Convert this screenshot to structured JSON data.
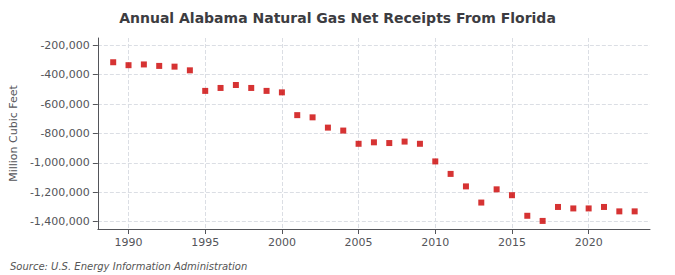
{
  "chart_data": {
    "type": "scatter",
    "title": "Annual Alabama Natural Gas Net Receipts From Florida",
    "ylabel": "Million Cubic Feet",
    "annotations": [
      "Source: U.S. Energy Information Administration"
    ],
    "color": "#cc0000",
    "marker": "square",
    "grid": true,
    "x": [
      1989,
      1990,
      1991,
      1992,
      1993,
      1994,
      1995,
      1996,
      1997,
      1998,
      1999,
      2000,
      2001,
      2002,
      2003,
      2004,
      2005,
      2006,
      2007,
      2008,
      2009,
      2010,
      2011,
      2012,
      2013,
      2014,
      2015,
      2016,
      2017,
      2018,
      2019,
      2020,
      2021,
      2022,
      2023
    ],
    "values": [
      -315000,
      -335000,
      -330000,
      -340000,
      -345000,
      -370000,
      -510000,
      -490000,
      -470000,
      -490000,
      -510000,
      -520000,
      -675000,
      -690000,
      -760000,
      -780000,
      -870000,
      -860000,
      -865000,
      -855000,
      -870000,
      -990000,
      -1075000,
      -1160000,
      -1270000,
      -1180000,
      -1220000,
      -1360000,
      -1395000,
      -1300000,
      -1310000,
      -1310000,
      -1300000,
      -1330000,
      -1330000
    ],
    "xlim": [
      1988.0,
      2024.0
    ],
    "xticks": [
      1990,
      1995,
      2000,
      2005,
      2010,
      2015,
      2020
    ],
    "ylim": [
      -1450000,
      -150000
    ],
    "yticks": [
      {
        "value": -200000,
        "label": "-200,000"
      },
      {
        "value": -400000,
        "label": "-400,000"
      },
      {
        "value": -600000,
        "label": "-600,000"
      },
      {
        "value": -800000,
        "label": "-800,000"
      },
      {
        "value": -1000000,
        "label": "-1,000,000"
      },
      {
        "value": -1200000,
        "label": "-1,200,000"
      },
      {
        "value": -1400000,
        "label": "-1,400,000"
      }
    ]
  }
}
